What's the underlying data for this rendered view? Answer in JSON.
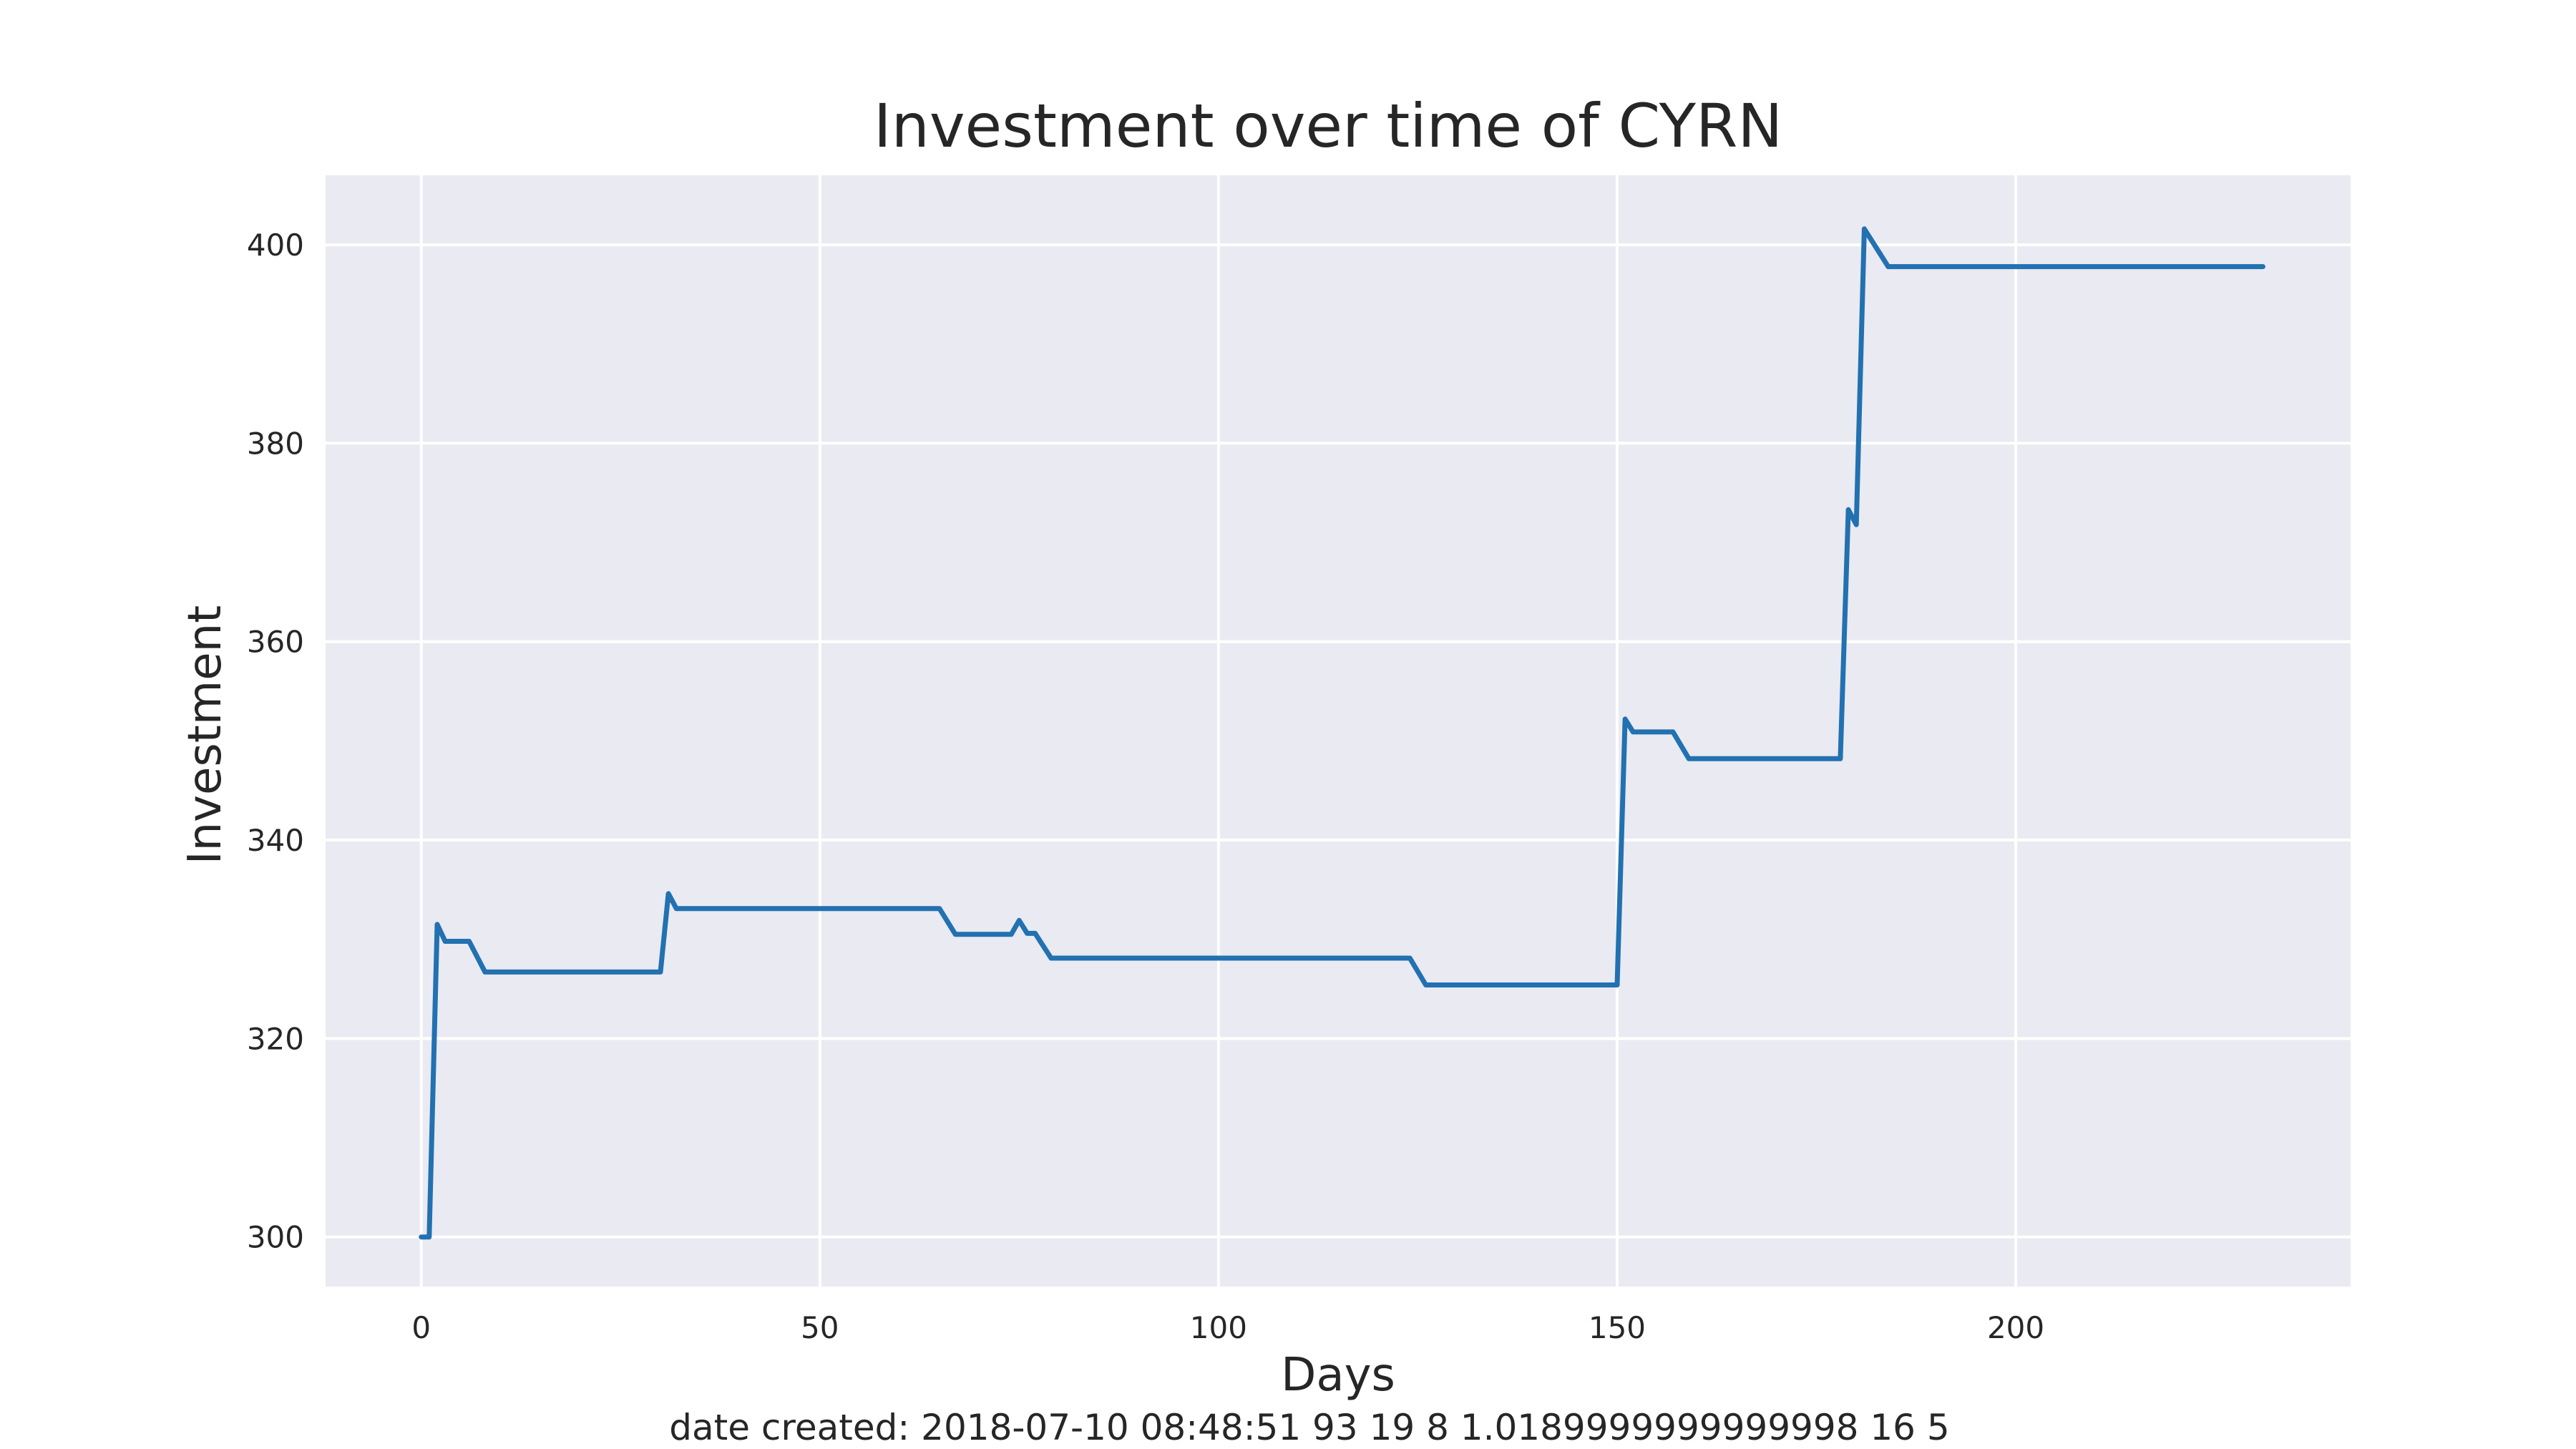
{
  "chart_data": {
    "type": "line",
    "title": "Investment over time of CYRN",
    "xlabel": "Days",
    "ylabel": "Investment",
    "xlim": [
      -12,
      242
    ],
    "ylim": [
      295,
      407
    ],
    "xticks": [
      0,
      50,
      100,
      150,
      200
    ],
    "yticks": [
      300,
      320,
      340,
      360,
      380,
      400
    ],
    "grid": true,
    "background": "#eaeaf2",
    "grid_color": "#ffffff",
    "line_color": "#2271b1",
    "series": [
      {
        "x": [
          0,
          1,
          2,
          3,
          6,
          8,
          30,
          31,
          32,
          65,
          67,
          74,
          75,
          76,
          77,
          79,
          124,
          126,
          150,
          151,
          152,
          157,
          159,
          178,
          179,
          180,
          181,
          184,
          231
        ],
        "y": [
          300,
          300,
          331.5,
          329.8,
          329.8,
          326.7,
          326.7,
          334.6,
          333.1,
          333.1,
          330.5,
          330.5,
          331.9,
          330.6,
          330.6,
          328.1,
          328.1,
          325.4,
          325.4,
          352.2,
          350.9,
          350.9,
          348.2,
          348.2,
          373.3,
          371.8,
          401.6,
          397.8,
          397.8
        ]
      }
    ]
  },
  "footer_text": "date created: 2018-07-10 08:48:51 93 19 8 1.0189999999999998 16 5"
}
